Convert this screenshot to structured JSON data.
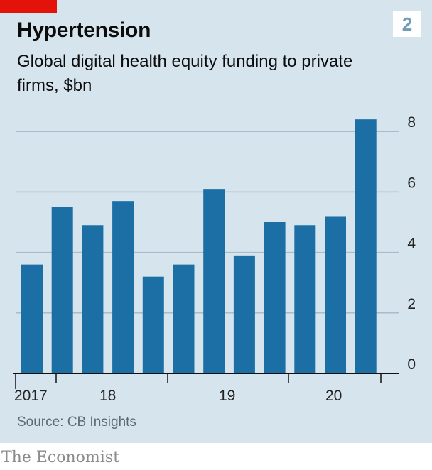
{
  "header": {
    "title": "Hypertension",
    "badge": "2",
    "subtitle": "Global digital health equity funding to private firms, $bn"
  },
  "footer": {
    "source": "Source: CB Insights",
    "brand": "The Economist"
  },
  "colors": {
    "bar": "#1b6fa5",
    "panel": "#d5e4ed",
    "accent": "#e3120b"
  },
  "chart_data": {
    "type": "bar",
    "title": "Hypertension",
    "subtitle": "Global digital health equity funding to private firms, $bn",
    "categories": [
      "2017 Q1",
      "2017 Q2",
      "2017 Q3",
      "2017 Q4",
      "2018 Q1",
      "2018 Q2",
      "2018 Q3",
      "2018 Q4",
      "2019 Q1",
      "2019 Q2",
      "2019 Q3",
      "2019 Q4",
      "2020 Q1"
    ],
    "values": [
      3.6,
      5.5,
      4.9,
      5.7,
      3.2,
      3.6,
      6.1,
      3.9,
      5.0,
      4.9,
      5.2,
      8.4,
      0
    ],
    "ylim": [
      0,
      8.7
    ],
    "yticks": [
      0,
      2,
      4,
      6,
      8
    ],
    "xtick_labels": [
      "2017",
      "18",
      "19",
      "20"
    ],
    "grid": true,
    "yaxis_side": "right",
    "source": "Source: CB Insights"
  }
}
